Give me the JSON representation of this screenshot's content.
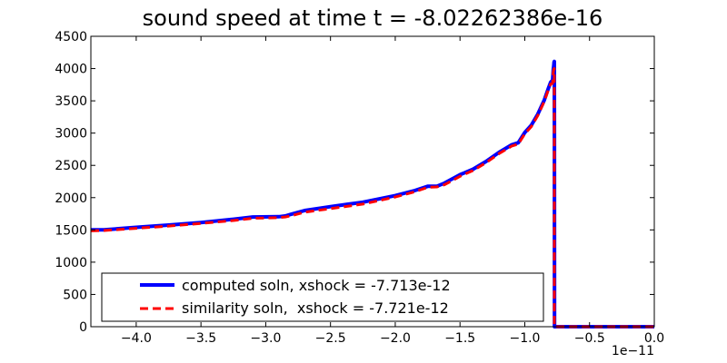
{
  "chart_data": {
    "type": "line",
    "title": "sound speed at time t = -8.02262386e-16",
    "xlim": [
      -4.35e-11,
      0.0
    ],
    "ylim": [
      0,
      4500
    ],
    "x_offset_label": "1e−11",
    "x_ticks": [
      -4e-11,
      -3.5e-11,
      -3e-11,
      -2.5e-11,
      -2e-11,
      -1.5e-11,
      -1e-11,
      -5e-12,
      0.0
    ],
    "x_tick_labels": [
      "−4.0",
      "−3.5",
      "−3.0",
      "−2.5",
      "−2.0",
      "−1.5",
      "−1.0",
      "−0.5",
      "0.0"
    ],
    "y_ticks": [
      0,
      500,
      1000,
      1500,
      2000,
      2500,
      3000,
      3500,
      4000,
      4500
    ],
    "y_tick_labels": [
      "0",
      "500",
      "1000",
      "1500",
      "2000",
      "2500",
      "3000",
      "3500",
      "4000",
      "4500"
    ],
    "grid": false,
    "legend_position": "lower-left",
    "series": [
      {
        "name": "computed soln, xshock = -7.713e-12",
        "color": "#0000ff",
        "style": "solid",
        "x": [
          -4.35e-11,
          -4.25e-11,
          -4e-11,
          -3.75e-11,
          -3.5e-11,
          -3.25e-11,
          -3.1e-11,
          -2.9e-11,
          -2.85e-11,
          -2.8e-11,
          -2.7e-11,
          -2.5e-11,
          -2.25e-11,
          -2e-11,
          -1.85e-11,
          -1.75e-11,
          -1.68e-11,
          -1.62e-11,
          -1.5e-11,
          -1.4e-11,
          -1.3e-11,
          -1.2e-11,
          -1.1e-11,
          -1.05e-11,
          -1e-11,
          -9.5e-12,
          -9e-12,
          -8.5e-12,
          -8.2e-12,
          -8e-12,
          -7.85e-12,
          -7.8e-12,
          -7.76e-12,
          -7.74e-12,
          -7.72e-12,
          -7.713e-12,
          -7.705e-12,
          -7.6e-12,
          0.0
        ],
        "y": [
          1500,
          1500,
          1540,
          1575,
          1615,
          1665,
          1700,
          1705,
          1715,
          1745,
          1800,
          1860,
          1930,
          2030,
          2110,
          2175,
          2175,
          2225,
          2355,
          2440,
          2560,
          2700,
          2820,
          2850,
          3010,
          3120,
          3290,
          3510,
          3680,
          3790,
          3820,
          3980,
          4050,
          4100,
          4110,
          3000,
          0,
          0,
          0
        ]
      },
      {
        "name": "similarity soln,  xshock = -7.721e-12",
        "color": "#ff0000",
        "style": "dashed",
        "x": [
          -4.35e-11,
          -4.25e-11,
          -4e-11,
          -3.75e-11,
          -3.5e-11,
          -3.25e-11,
          -3.1e-11,
          -2.9e-11,
          -2.85e-11,
          -2.8e-11,
          -2.7e-11,
          -2.5e-11,
          -2.25e-11,
          -2e-11,
          -1.85e-11,
          -1.75e-11,
          -1.68e-11,
          -1.62e-11,
          -1.5e-11,
          -1.4e-11,
          -1.3e-11,
          -1.2e-11,
          -1.1e-11,
          -1.05e-11,
          -1e-11,
          -9.5e-12,
          -9e-12,
          -8.5e-12,
          -8.2e-12,
          -8e-12,
          -7.85e-12,
          -7.8e-12,
          -7.76e-12,
          -7.725e-12,
          -7.721e-12,
          -7.715e-12,
          -7.6e-12,
          0.0
        ],
        "y": [
          1485,
          1490,
          1525,
          1560,
          1600,
          1645,
          1680,
          1690,
          1700,
          1720,
          1775,
          1830,
          1900,
          2010,
          2090,
          2160,
          2165,
          2200,
          2330,
          2420,
          2540,
          2680,
          2800,
          2830,
          2990,
          3100,
          3270,
          3490,
          3660,
          3760,
          3770,
          3940,
          3990,
          4000,
          3000,
          0,
          0,
          0
        ]
      }
    ]
  }
}
